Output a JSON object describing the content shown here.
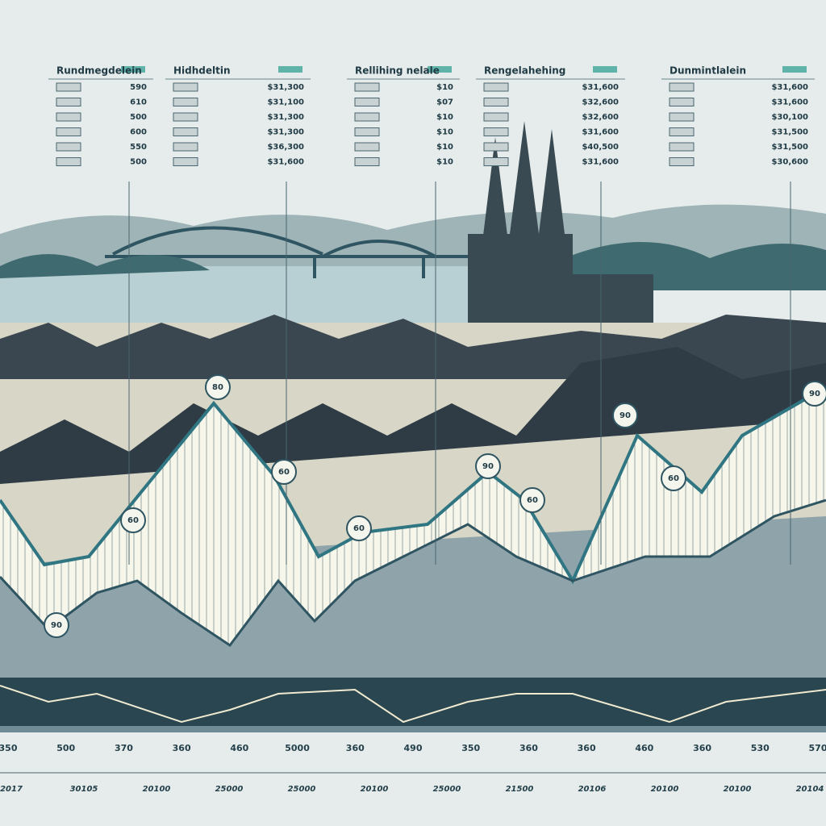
{
  "header_tables": [
    {
      "title": "Rundmegdelein",
      "values": [
        "590",
        "610",
        "500",
        "600",
        "550",
        "500"
      ]
    },
    {
      "title": "Hidhdeltin",
      "values": [
        "$31,300",
        "$31,100",
        "$31,300",
        "$31,300",
        "$36,300",
        "$31,600"
      ]
    },
    {
      "title": "Rellihing nelale",
      "values": [
        "$10",
        "$07",
        "$10",
        "$10",
        "$10",
        "$10"
      ]
    },
    {
      "title": "Rengelahehing",
      "values": [
        "$31,600",
        "$32,600",
        "$32,600",
        "$31,600",
        "$40,500",
        "$31,600"
      ]
    },
    {
      "title": "Dunmintlalein",
      "values": [
        "$31,600",
        "$31,600",
        "$30,100",
        "$31,500",
        "$31,500",
        "$30,600"
      ]
    }
  ],
  "bubbles": [
    "90",
    "60",
    "80",
    "60",
    "60",
    "90",
    "60",
    "90",
    "60",
    "90"
  ],
  "axis_labels": [
    "350",
    "500",
    "370",
    "360",
    "460",
    "5000",
    "360",
    "490",
    "350",
    "360",
    "360",
    "460",
    "360",
    "530",
    "570"
  ],
  "year_labels": [
    "2017",
    "30105",
    "20100",
    "25000",
    "25000",
    "20100",
    "25000",
    "21500",
    "20106",
    "20100",
    "20100",
    "20104"
  ]
}
